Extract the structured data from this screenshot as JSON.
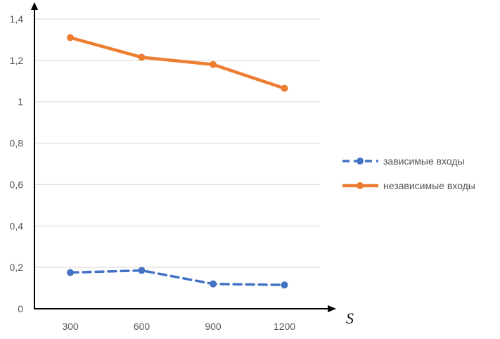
{
  "chart_data": {
    "type": "line",
    "title": "",
    "xlabel": "S",
    "ylabel": "",
    "categories": [
      "300",
      "600",
      "900",
      "1200"
    ],
    "ylim": [
      0,
      1.4
    ],
    "yticks": [
      "0",
      "0,2",
      "0,4",
      "0,6",
      "0,8",
      "1",
      "1,2",
      "1,4"
    ],
    "grid": true,
    "legend_position": "right",
    "series": [
      {
        "name": "зависимые входы",
        "values": [
          0.175,
          0.185,
          0.12,
          0.115
        ],
        "color": "#4472C4",
        "style": "dashed"
      },
      {
        "name": "независимые входы",
        "values": [
          1.31,
          1.215,
          1.18,
          1.065
        ],
        "color": "#ED7D31",
        "style": "solid"
      }
    ]
  }
}
